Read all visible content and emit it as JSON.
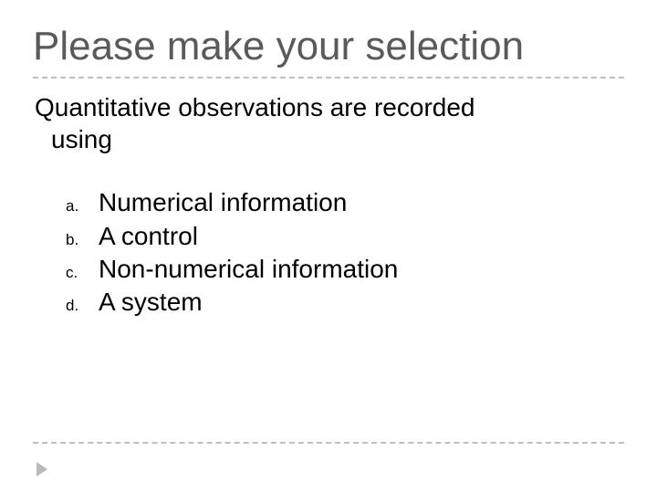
{
  "slide": {
    "title": "Please make your selection",
    "title_color": "#5a5a5a",
    "title_fontsize": 44,
    "divider_color": "#bfbfbf",
    "divider_style": "dashed",
    "background_color": "#ffffff",
    "question_line1": "Quantitative observations are recorded",
    "question_line2": "using",
    "question_fontsize": 28,
    "question_color": "#000000",
    "options": [
      {
        "marker": "a.",
        "text": "Numerical information"
      },
      {
        "marker": "b.",
        "text": "A control"
      },
      {
        "marker": "c.",
        "text": "Non-numerical information"
      },
      {
        "marker": "d.",
        "text": "A system"
      }
    ],
    "option_fontsize": 28,
    "option_marker_fontsize": 17,
    "corner_arrow_color": "#b9b9b9"
  }
}
